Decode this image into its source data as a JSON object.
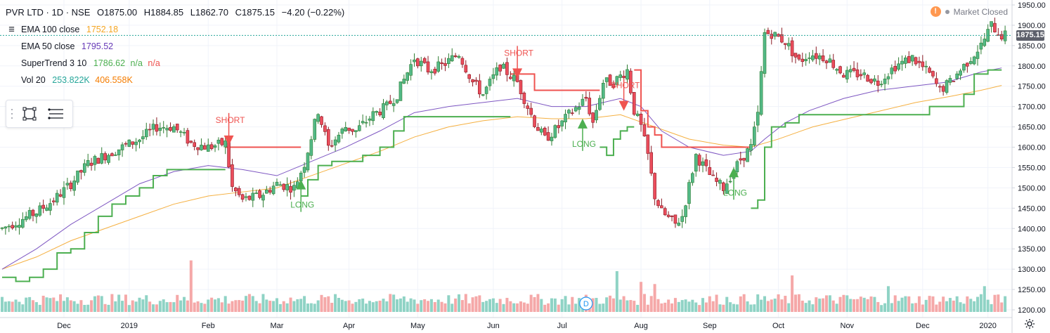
{
  "header": {
    "symbol_line": "PVR LTD · 1D · NSE",
    "open": "O1875.00",
    "high": "H1884.85",
    "low": "L1862.70",
    "close": "C1875.15",
    "change": "−4.20 (−0.22%)"
  },
  "market_status": "Market Closed",
  "indicators": [
    {
      "name": "EMA 100 close",
      "value": "1752.18",
      "color": "#f5a623"
    },
    {
      "name": "EMA 50 close",
      "value": "1795.52",
      "color": "#673ab7"
    },
    {
      "name": "SuperTrend 3 10",
      "value": "1786.62",
      "extra1": "n/a",
      "extra2": "n/a",
      "color1": "#4caf50",
      "color2": "#ef5350"
    },
    {
      "name": "Vol 20",
      "value": "253.822K",
      "extra1": "406.558K",
      "color1": "#26a69a",
      "color2": "#f57c00"
    }
  ],
  "price_tag": "1875.15",
  "colors": {
    "up": "#53b987",
    "up_border": "#2e7d32",
    "down": "#eb4d5c",
    "down_border": "#8b1a24",
    "supertrend_up": "#4caf50",
    "supertrend_down": "#ef5350",
    "ema50": "#7e57c2",
    "ema100": "#f5b041",
    "vol_up": "#8fd3c5",
    "vol_down": "#f5a8a8",
    "grid": "#f0f3fa",
    "axis_text": "#131722"
  },
  "icons": [
    "eye-icon",
    "rectangle-tool-icon",
    "lines-tool-icon",
    "alert-icon",
    "settings-gear-icon",
    "dividend-marker-icon"
  ],
  "chart_data": {
    "type": "candlestick",
    "y_axis": {
      "min": 1200,
      "max": 1950,
      "ticks": [
        1950,
        1900,
        1850,
        1800,
        1750,
        1700,
        1650,
        1600,
        1550,
        1500,
        1450,
        1400,
        1350,
        1300,
        1250,
        1200
      ],
      "position": "right"
    },
    "x_ticks": [
      {
        "label": "Dec",
        "day": 18
      },
      {
        "label": "2019",
        "day": 37
      },
      {
        "label": "Feb",
        "day": 60
      },
      {
        "label": "Mar",
        "day": 80
      },
      {
        "label": "Apr",
        "day": 101
      },
      {
        "label": "May",
        "day": 121
      },
      {
        "label": "Jun",
        "day": 143
      },
      {
        "label": "Jul",
        "day": 163
      },
      {
        "label": "Aug",
        "day": 186
      },
      {
        "label": "Sep",
        "day": 206
      },
      {
        "label": "Oct",
        "day": 226
      },
      {
        "label": "Nov",
        "day": 246
      },
      {
        "label": "Dec",
        "day": 268
      },
      {
        "label": "2020",
        "day": 287
      }
    ],
    "total_days": 293,
    "close_path": [
      [
        0,
        1400
      ],
      [
        5,
        1420
      ],
      [
        10,
        1440
      ],
      [
        15,
        1470
      ],
      [
        20,
        1510
      ],
      [
        25,
        1560
      ],
      [
        30,
        1580
      ],
      [
        35,
        1600
      ],
      [
        40,
        1620
      ],
      [
        45,
        1650
      ],
      [
        50,
        1650
      ],
      [
        55,
        1610
      ],
      [
        60,
        1600
      ],
      [
        65,
        1610
      ],
      [
        67,
        1500
      ],
      [
        70,
        1470
      ],
      [
        75,
        1480
      ],
      [
        80,
        1510
      ],
      [
        85,
        1500
      ],
      [
        88,
        1560
      ],
      [
        92,
        1690
      ],
      [
        95,
        1600
      ],
      [
        100,
        1650
      ],
      [
        103,
        1640
      ],
      [
        108,
        1680
      ],
      [
        112,
        1700
      ],
      [
        115,
        1730
      ],
      [
        120,
        1820
      ],
      [
        124,
        1790
      ],
      [
        128,
        1800
      ],
      [
        133,
        1830
      ],
      [
        137,
        1760
      ],
      [
        140,
        1730
      ],
      [
        145,
        1800
      ],
      [
        150,
        1760
      ],
      [
        152,
        1720
      ],
      [
        155,
        1660
      ],
      [
        158,
        1620
      ],
      [
        162,
        1650
      ],
      [
        165,
        1680
      ],
      [
        170,
        1720
      ],
      [
        172,
        1660
      ],
      [
        175,
        1760
      ],
      [
        178,
        1760
      ],
      [
        182,
        1790
      ],
      [
        184,
        1690
      ],
      [
        186,
        1650
      ],
      [
        188,
        1580
      ],
      [
        190,
        1480
      ],
      [
        192,
        1440
      ],
      [
        196,
        1410
      ],
      [
        198,
        1430
      ],
      [
        202,
        1580
      ],
      [
        207,
        1520
      ],
      [
        210,
        1500
      ],
      [
        215,
        1570
      ],
      [
        218,
        1600
      ],
      [
        220,
        1680
      ],
      [
        222,
        1880
      ],
      [
        224,
        1880
      ],
      [
        228,
        1860
      ],
      [
        232,
        1810
      ],
      [
        235,
        1830
      ],
      [
        240,
        1820
      ],
      [
        245,
        1780
      ],
      [
        250,
        1780
      ],
      [
        255,
        1760
      ],
      [
        260,
        1800
      ],
      [
        265,
        1820
      ],
      [
        270,
        1780
      ],
      [
        273,
        1740
      ],
      [
        276,
        1760
      ],
      [
        280,
        1800
      ],
      [
        285,
        1850
      ],
      [
        288,
        1900
      ],
      [
        291,
        1875
      ]
    ],
    "supertrend": [
      {
        "trend": "up",
        "points": [
          [
            0,
            1280
          ],
          [
            4,
            1270
          ],
          [
            8,
            1280
          ],
          [
            12,
            1300
          ],
          [
            16,
            1340
          ],
          [
            20,
            1350
          ],
          [
            24,
            1390
          ],
          [
            28,
            1430
          ],
          [
            32,
            1460
          ],
          [
            36,
            1480
          ],
          [
            40,
            1500
          ],
          [
            44,
            1530
          ],
          [
            48,
            1545
          ],
          [
            52,
            1545
          ],
          [
            56,
            1545
          ],
          [
            60,
            1545
          ],
          [
            65,
            1545
          ]
        ]
      },
      {
        "trend": "down",
        "points": [
          [
            65,
            1600
          ],
          [
            68,
            1600
          ],
          [
            72,
            1600
          ],
          [
            78,
            1600
          ],
          [
            84,
            1600
          ],
          [
            87,
            1600
          ]
        ]
      },
      {
        "trend": "up",
        "points": [
          [
            87,
            1480
          ],
          [
            89,
            1520
          ],
          [
            92,
            1555
          ],
          [
            96,
            1565
          ],
          [
            100,
            1565
          ],
          [
            105,
            1580
          ],
          [
            110,
            1600
          ],
          [
            114,
            1640
          ],
          [
            117,
            1675
          ],
          [
            120,
            1675
          ],
          [
            125,
            1675
          ],
          [
            130,
            1675
          ],
          [
            135,
            1675
          ],
          [
            140,
            1675
          ],
          [
            145,
            1675
          ],
          [
            148,
            1675
          ]
        ]
      },
      {
        "trend": "down",
        "points": [
          [
            148,
            1780
          ],
          [
            152,
            1780
          ],
          [
            155,
            1740
          ],
          [
            160,
            1740
          ],
          [
            165,
            1740
          ],
          [
            170,
            1740
          ],
          [
            174,
            1740
          ]
        ]
      },
      {
        "trend": "up",
        "points": [
          [
            174,
            1600
          ],
          [
            176,
            1580
          ],
          [
            178,
            1620
          ],
          [
            180,
            1640
          ],
          [
            182,
            1650
          ],
          [
            184,
            1650
          ]
        ]
      },
      {
        "trend": "down",
        "points": [
          [
            184,
            1790
          ],
          [
            186,
            1690
          ],
          [
            188,
            1650
          ],
          [
            190,
            1630
          ],
          [
            192,
            1600
          ],
          [
            196,
            1600
          ],
          [
            200,
            1600
          ],
          [
            205,
            1600
          ],
          [
            210,
            1600
          ],
          [
            215,
            1600
          ],
          [
            218,
            1600
          ]
        ]
      },
      {
        "trend": "up",
        "points": [
          [
            218,
            1450
          ],
          [
            220,
            1470
          ],
          [
            222,
            1600
          ],
          [
            224,
            1650
          ],
          [
            228,
            1660
          ],
          [
            232,
            1680
          ],
          [
            236,
            1680
          ],
          [
            240,
            1680
          ],
          [
            245,
            1680
          ],
          [
            250,
            1680
          ],
          [
            255,
            1680
          ],
          [
            260,
            1680
          ],
          [
            265,
            1680
          ],
          [
            270,
            1700
          ],
          [
            275,
            1700
          ],
          [
            280,
            1730
          ],
          [
            283,
            1780
          ],
          [
            287,
            1790
          ],
          [
            291,
            1790
          ]
        ]
      }
    ],
    "ema50": [
      [
        0,
        1300
      ],
      [
        10,
        1350
      ],
      [
        20,
        1410
      ],
      [
        30,
        1460
      ],
      [
        40,
        1510
      ],
      [
        50,
        1540
      ],
      [
        60,
        1555
      ],
      [
        70,
        1545
      ],
      [
        80,
        1530
      ],
      [
        90,
        1565
      ],
      [
        100,
        1600
      ],
      [
        110,
        1640
      ],
      [
        120,
        1685
      ],
      [
        130,
        1700
      ],
      [
        140,
        1710
      ],
      [
        150,
        1720
      ],
      [
        160,
        1700
      ],
      [
        170,
        1700
      ],
      [
        180,
        1720
      ],
      [
        186,
        1700
      ],
      [
        192,
        1640
      ],
      [
        200,
        1600
      ],
      [
        210,
        1580
      ],
      [
        218,
        1590
      ],
      [
        222,
        1620
      ],
      [
        228,
        1660
      ],
      [
        235,
        1690
      ],
      [
        245,
        1720
      ],
      [
        255,
        1740
      ],
      [
        265,
        1750
      ],
      [
        275,
        1760
      ],
      [
        285,
        1785
      ],
      [
        291,
        1795
      ]
    ],
    "ema100": [
      [
        0,
        1300
      ],
      [
        10,
        1330
      ],
      [
        20,
        1370
      ],
      [
        30,
        1400
      ],
      [
        40,
        1430
      ],
      [
        50,
        1460
      ],
      [
        60,
        1480
      ],
      [
        70,
        1490
      ],
      [
        80,
        1500
      ],
      [
        90,
        1530
      ],
      [
        100,
        1560
      ],
      [
        110,
        1590
      ],
      [
        120,
        1625
      ],
      [
        130,
        1650
      ],
      [
        140,
        1665
      ],
      [
        150,
        1675
      ],
      [
        160,
        1670
      ],
      [
        170,
        1670
      ],
      [
        180,
        1680
      ],
      [
        190,
        1650
      ],
      [
        200,
        1620
      ],
      [
        210,
        1605
      ],
      [
        218,
        1600
      ],
      [
        226,
        1620
      ],
      [
        236,
        1650
      ],
      [
        246,
        1670
      ],
      [
        256,
        1690
      ],
      [
        266,
        1710
      ],
      [
        276,
        1725
      ],
      [
        285,
        1740
      ],
      [
        291,
        1752
      ]
    ],
    "signals": [
      {
        "type": "SHORT",
        "label": "SHORT",
        "day": 66,
        "price": 1615
      },
      {
        "type": "LONG",
        "label": "LONG",
        "day": 87,
        "price": 1510
      },
      {
        "type": "SHORT",
        "label": "SHORT",
        "day": 150,
        "price": 1780
      },
      {
        "type": "LONG",
        "label": "LONG",
        "day": 169,
        "price": 1660
      },
      {
        "type": "SHORT",
        "label": "SHORT",
        "day": 181,
        "price": 1700
      },
      {
        "type": "LONG",
        "label": "LONG",
        "day": 213,
        "price": 1540
      }
    ],
    "volume": {
      "max_k": 1800,
      "baseline": "bottom",
      "spikes": [
        [
          55,
          1200
        ],
        [
          179,
          950
        ],
        [
          186,
          700
        ],
        [
          190,
          650
        ],
        [
          230,
          850
        ],
        [
          258,
          600
        ],
        [
          286,
          600
        ]
      ]
    },
    "dividend_marker": {
      "label": "D",
      "day": 170
    },
    "last_price": 1875.15
  }
}
